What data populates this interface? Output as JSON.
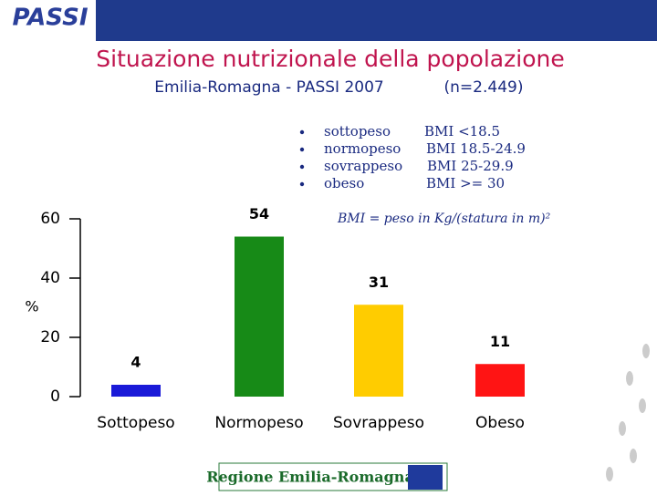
{
  "header": {
    "logo": "PASSI"
  },
  "footer": {
    "logo": "Regione Emilia-Romagna"
  },
  "chart_data": {
    "type": "bar",
    "title": "Situazione nutrizionale della popolazione",
    "subtitle": "Emilia-Romagna - PASSI 2007",
    "sample": "(n=2.449)",
    "notes": [
      {
        "label": "sottopeso",
        "bmi": "BMI <18.5"
      },
      {
        "label": "normopeso",
        "bmi": "BMI 18.5-24.9"
      },
      {
        "label": "sovrappeso",
        "bmi": "BMI 25-29.9"
      },
      {
        "label": "obeso",
        "bmi": "BMI >= 30"
      }
    ],
    "formula": "BMI = peso in Kg/(statura in m)²",
    "y_label": "%",
    "categories": [
      "Sottopeso",
      "Normopeso",
      "Sovrappeso",
      "Obeso"
    ],
    "values": [
      4,
      54,
      31,
      11
    ],
    "colors": [
      "#1a1ad8",
      "#178a17",
      "#ffcc00",
      "#ff1414"
    ],
    "ylim": [
      0,
      60
    ],
    "yticks": [
      0,
      20,
      40,
      60
    ],
    "grid": false
  }
}
